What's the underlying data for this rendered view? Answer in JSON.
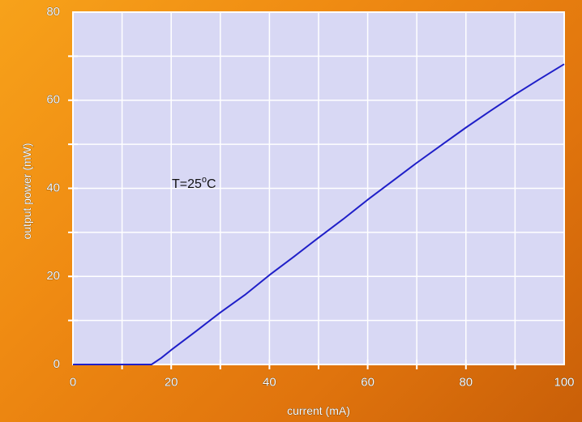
{
  "chart_data": {
    "type": "line",
    "title": "",
    "xlabel": "current (mA)",
    "ylabel": "output power (mW)",
    "xlim": [
      0,
      100
    ],
    "ylim": [
      0,
      80
    ],
    "x_ticks": [
      0,
      20,
      40,
      60,
      80,
      100
    ],
    "y_ticks": [
      0,
      20,
      40,
      60,
      80
    ],
    "x_tick_labels": [
      "0",
      "20",
      "40",
      "60",
      "80",
      "100"
    ],
    "y_tick_labels": [
      "0",
      "20",
      "40",
      "60",
      "80"
    ],
    "grid": true,
    "annotation": {
      "text": "T=25",
      "superscript": "o",
      "suffix": "C"
    },
    "series": [
      {
        "x": [
          0,
          10,
          16,
          18,
          20,
          25,
          30,
          35,
          40,
          45,
          50,
          55,
          60,
          65,
          70,
          75,
          80,
          85,
          90,
          95,
          100
        ],
        "y": [
          0,
          0,
          0,
          1.5,
          3.3,
          7.5,
          11.8,
          15.8,
          20.3,
          24.5,
          28.8,
          33.0,
          37.4,
          41.6,
          45.8,
          49.8,
          53.8,
          57.6,
          61.3,
          64.8,
          68.2
        ]
      }
    ],
    "colors": {
      "line": "#1f1fc8",
      "plot_bg": "#d8d8f4",
      "grid": "#ffffff"
    }
  }
}
